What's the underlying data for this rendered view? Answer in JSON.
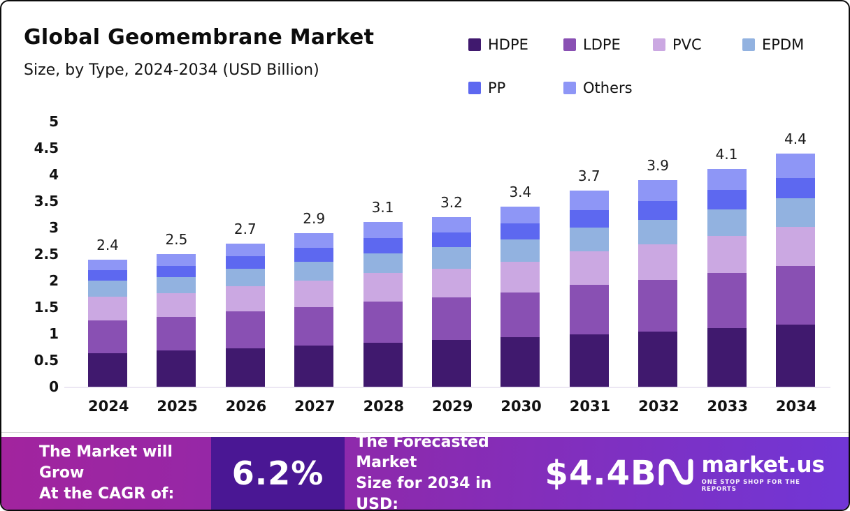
{
  "chart_data": {
    "type": "bar",
    "stacked": true,
    "title": "Global Geomembrane Market",
    "subtitle": "Size, by Type, 2024-2034 (USD Billion)",
    "categories": [
      "2024",
      "2025",
      "2026",
      "2027",
      "2028",
      "2029",
      "2030",
      "2031",
      "2032",
      "2033",
      "2034"
    ],
    "totals": [
      2.4,
      2.5,
      2.7,
      2.9,
      3.1,
      3.2,
      3.4,
      3.7,
      3.9,
      4.1,
      4.4
    ],
    "series": [
      {
        "name": "HDPE",
        "color": "#40196e",
        "values": [
          0.63,
          0.68,
          0.72,
          0.77,
          0.83,
          0.88,
          0.93,
          0.99,
          1.04,
          1.1,
          1.17
        ]
      },
      {
        "name": "LDPE",
        "color": "#8950b3",
        "values": [
          0.62,
          0.63,
          0.7,
          0.73,
          0.78,
          0.8,
          0.85,
          0.93,
          0.98,
          1.04,
          1.11
        ]
      },
      {
        "name": "PVC",
        "color": "#cba8e2",
        "values": [
          0.45,
          0.45,
          0.48,
          0.5,
          0.53,
          0.55,
          0.58,
          0.63,
          0.66,
          0.7,
          0.74
        ]
      },
      {
        "name": "EPDM",
        "color": "#92b2e0",
        "values": [
          0.3,
          0.31,
          0.33,
          0.36,
          0.38,
          0.4,
          0.42,
          0.45,
          0.47,
          0.5,
          0.53
        ]
      },
      {
        "name": "PP",
        "color": "#5d68f0",
        "values": [
          0.2,
          0.21,
          0.23,
          0.26,
          0.28,
          0.28,
          0.3,
          0.33,
          0.35,
          0.37,
          0.39
        ]
      },
      {
        "name": "Others",
        "color": "#8e96f6",
        "values": [
          0.2,
          0.22,
          0.24,
          0.28,
          0.3,
          0.29,
          0.32,
          0.37,
          0.4,
          0.39,
          0.46
        ]
      }
    ],
    "xlabel": "",
    "ylabel": "",
    "ylim": [
      0,
      5
    ],
    "yticks": [
      0,
      0.5,
      1,
      1.5,
      2,
      2.5,
      3,
      3.5,
      4,
      4.5,
      5
    ],
    "grid": false,
    "legend_position": "top-right"
  },
  "banner": {
    "cagr_label_line1": "The Market will Grow",
    "cagr_label_line2": "At the CAGR of:",
    "cagr_value": "6.2%",
    "forecast_label_line1": "The Forecasted Market",
    "forecast_label_line2": "Size for 2034 in USD:",
    "forecast_value": "$4.4B",
    "brand_name": "market.us",
    "brand_tagline": "ONE STOP SHOP FOR THE REPORTS"
  },
  "colors": {
    "banner_gradient_left": "#a2249e",
    "banner_gradient_right": "#7136d6",
    "cagr_box": "#4a1794",
    "frame_border": "#0b0b0b"
  }
}
